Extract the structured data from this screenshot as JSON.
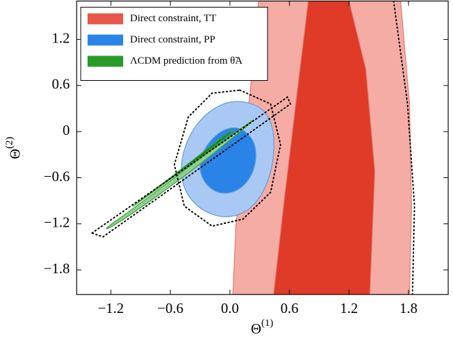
{
  "chart_data": {
    "type": "contour",
    "xlabel": {
      "base": "Θ",
      "sup": "(1)"
    },
    "ylabel": {
      "base": "Θ",
      "sup": "(2)"
    },
    "xlim": [
      -1.545,
      2.2
    ],
    "ylim": [
      -2.12,
      1.7
    ],
    "xticks": [
      {
        "value": -1.2,
        "label": "−1.2"
      },
      {
        "value": -0.6,
        "label": "−0.6"
      },
      {
        "value": 0.0,
        "label": "0.0"
      },
      0.6,
      1.2,
      1.8
    ],
    "yticks": [
      {
        "value": -1.8,
        "label": "−1.8"
      },
      {
        "value": -1.2,
        "label": "−1.2"
      },
      {
        "value": -0.6,
        "label": "−0.6"
      },
      0,
      0.6,
      1.2
    ],
    "legend": "upper left",
    "series": [
      {
        "name": "Direct constraint, TT",
        "color": "#e8574a",
        "fills": [
          "#f4aca5",
          "#e03a28"
        ],
        "edge": "#e07a70",
        "smooth": false,
        "contours": [
          [
            [
              0.03,
              -2.12
            ],
            [
              0.06,
              -1.23
            ],
            [
              0.13,
              -0.35
            ],
            [
              0.22,
              0.72
            ],
            [
              0.29,
              1.7
            ],
            [
              1.72,
              1.7
            ],
            [
              1.81,
              0.36
            ],
            [
              1.83,
              -0.97
            ],
            [
              1.81,
              -2.12
            ]
          ],
          [
            [
              0.44,
              -2.12
            ],
            [
              0.54,
              -0.97
            ],
            [
              0.68,
              0.54
            ],
            [
              0.79,
              1.7
            ],
            [
              1.2,
              1.7
            ],
            [
              1.37,
              0.81
            ],
            [
              1.46,
              -0.52
            ],
            [
              1.41,
              -2.12
            ]
          ]
        ]
      },
      {
        "name": "Direct constraint, PP",
        "color": "#2a84e8",
        "fills": [
          "#a9c9f4",
          "#2a84e8"
        ],
        "edge": "#5a9be0",
        "smooth": true,
        "contours": [
          [
            [
              0.13,
              0.41
            ],
            [
              0.37,
              0.28
            ],
            [
              0.46,
              -0.08
            ],
            [
              0.41,
              -0.61
            ],
            [
              0.23,
              -1.01
            ],
            [
              -0.04,
              -1.14
            ],
            [
              -0.32,
              -1.01
            ],
            [
              -0.49,
              -0.7
            ],
            [
              -0.49,
              -0.3
            ],
            [
              -0.35,
              0.1
            ],
            [
              -0.11,
              0.36
            ]
          ],
          [
            [
              0.13,
              0.05
            ],
            [
              0.27,
              -0.17
            ],
            [
              0.25,
              -0.52
            ],
            [
              0.1,
              -0.77
            ],
            [
              -0.11,
              -0.82
            ],
            [
              -0.27,
              -0.66
            ],
            [
              -0.32,
              -0.39
            ],
            [
              -0.21,
              -0.12
            ],
            [
              -0.04,
              0.05
            ]
          ]
        ]
      },
      {
        "name": "ΛCDM prediction from θ̃A",
        "color": "#2a9a2a",
        "fills": [
          "#8fd08f",
          "#1a8a1a"
        ],
        "edge": "#3aa03a",
        "smooth": true,
        "contours": [
          [
            [
              -1.32,
              -1.32
            ],
            [
              -0.94,
              -0.97
            ],
            [
              -0.25,
              -0.3
            ],
            [
              0.27,
              0.19
            ],
            [
              0.2,
              0.1
            ],
            [
              -0.39,
              -0.52
            ],
            [
              -1.08,
              -1.16
            ]
          ],
          [
            [
              -0.99,
              -0.98
            ],
            [
              -0.52,
              -0.52
            ],
            [
              0.06,
              0.07
            ],
            [
              -0.01,
              -0.06
            ],
            [
              -0.59,
              -0.61
            ],
            [
              -0.96,
              -0.96
            ]
          ]
        ]
      }
    ],
    "reference_contours": [
      [
        [
          1.65,
          1.7
        ],
        [
          1.79,
          0.36
        ],
        [
          1.86,
          -0.97
        ],
        [
          1.84,
          -2.12
        ]
      ],
      [
        [
          0.1,
          0.54
        ],
        [
          0.41,
          0.36
        ],
        [
          0.51,
          -0.17
        ],
        [
          0.41,
          -0.79
        ],
        [
          0.13,
          -1.14
        ],
        [
          -0.18,
          -1.23
        ],
        [
          -0.46,
          -0.97
        ],
        [
          -0.56,
          -0.43
        ],
        [
          -0.42,
          0.19
        ],
        [
          -0.18,
          0.5
        ],
        [
          0.1,
          0.54
        ]
      ],
      [
        [
          -1.39,
          -1.32
        ],
        [
          0.58,
          0.45
        ],
        [
          0.61,
          0.36
        ],
        [
          -1.28,
          -1.37
        ],
        [
          -1.39,
          -1.32
        ]
      ]
    ]
  }
}
